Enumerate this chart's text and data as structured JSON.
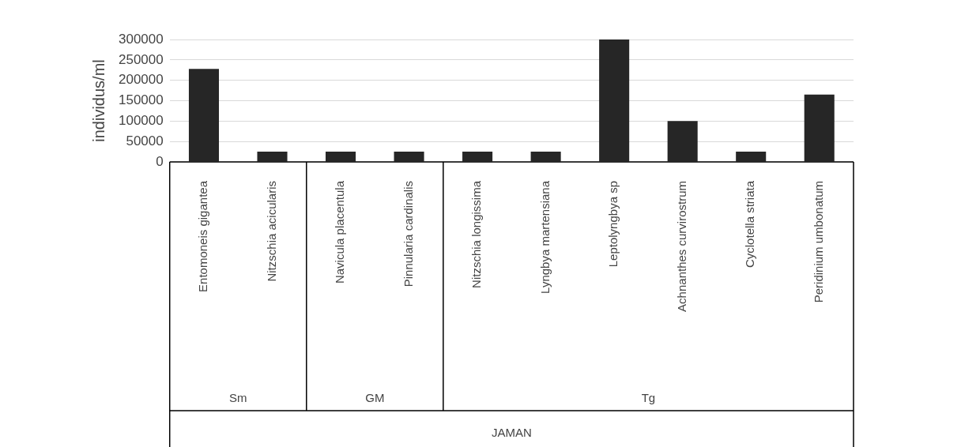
{
  "chart_data": {
    "type": "bar",
    "ylabel": "individus/ml",
    "categories": [
      "Entomoneis gigantea",
      "Nitzschia acicularis",
      "Navicula placentula",
      "Pinnularia cardinalis",
      "Nitzschia longissima",
      "Lyngbya martensiana",
      "Leptolyngbya sp",
      "Achnanthes curvirostrum",
      "Cyclotella striata",
      "Peridinium umbonatum"
    ],
    "values": [
      228000,
      25000,
      25000,
      25000,
      25000,
      25000,
      300000,
      100000,
      25000,
      165000
    ],
    "color": "#262626",
    "ylim": [
      0,
      300000
    ],
    "yticks": [
      0,
      50000,
      100000,
      150000,
      200000,
      250000,
      300000
    ],
    "grid": "y",
    "annotations": [
      "Sm",
      "GM",
      "Tg",
      "JAMAN"
    ]
  }
}
